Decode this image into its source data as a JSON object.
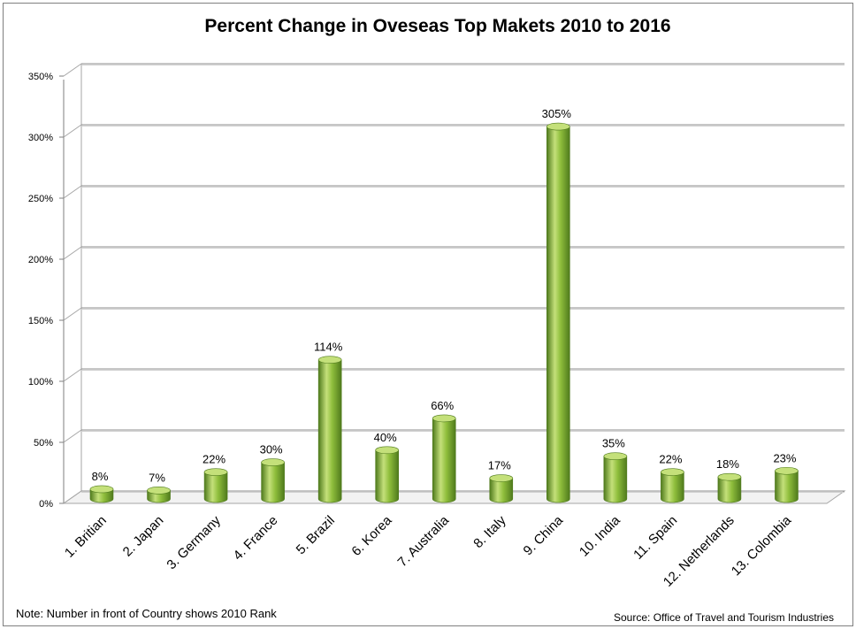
{
  "chart_data": {
    "type": "bar",
    "title": "Percent Change in Oveseas Top Makets 2010 to 2016",
    "categories": [
      "1. Britian",
      "2. Japan",
      "3. Germany",
      "4. France",
      "5. Brazil",
      "6. Korea",
      "7. Australia",
      "8. Italy",
      "9. China",
      "10. India",
      "11. Spain",
      "12. Netherlands",
      "13. Colombia"
    ],
    "values": [
      8,
      7,
      22,
      30,
      114,
      40,
      66,
      17,
      305,
      35,
      22,
      18,
      23
    ],
    "value_labels": [
      "8%",
      "7%",
      "22%",
      "30%",
      "114%",
      "40%",
      "66%",
      "17%",
      "305%",
      "35%",
      "22%",
      "18%",
      "23%"
    ],
    "yticks": [
      0,
      50,
      100,
      150,
      200,
      250,
      300,
      350
    ],
    "ytick_labels": [
      "0%",
      "50%",
      "100%",
      "150%",
      "200%",
      "250%",
      "300%",
      "350%"
    ],
    "ylim": [
      0,
      350
    ],
    "xlabel": "",
    "ylabel": "",
    "grid": true,
    "bar_color": "#8fbe3c",
    "bar_highlight": "#c4e07a",
    "bar_shadow": "#4f7a1c"
  },
  "note": "Note:  Number in front of Country shows 2010 Rank",
  "source": "Source:  Office of Travel and Tourism Industries"
}
